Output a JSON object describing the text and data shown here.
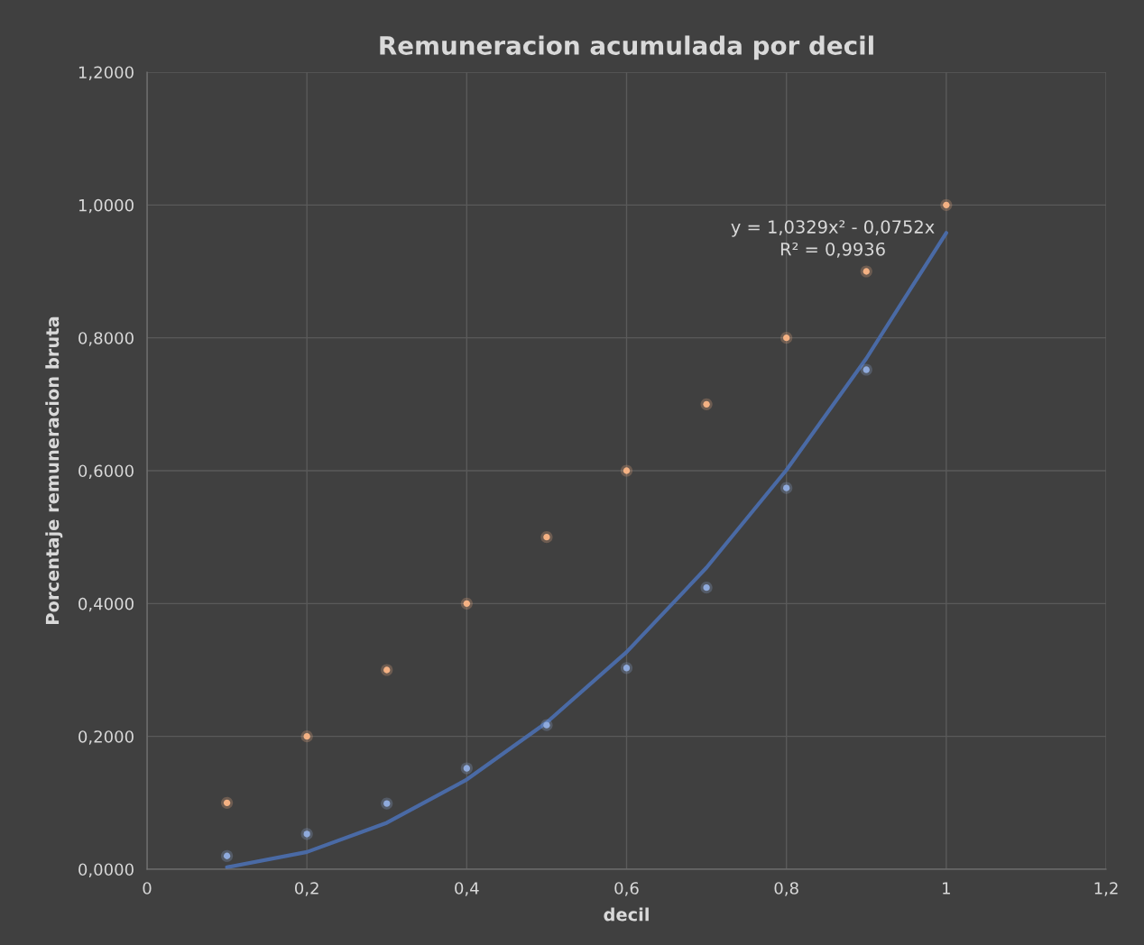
{
  "chart_data": {
    "type": "scatter",
    "title": "Remuneracion acumulada por decil",
    "xlabel": "decil",
    "ylabel": "Porcentaje remuneracion bruta",
    "x": [
      0.1,
      0.2,
      0.3,
      0.4,
      0.5,
      0.6,
      0.7,
      0.8,
      0.9,
      1.0
    ],
    "series": [
      {
        "color": "#8faadc",
        "values": [
          0.02,
          0.053,
          0.099,
          0.152,
          0.217,
          0.303,
          0.424,
          0.574,
          0.752,
          null
        ]
      },
      {
        "color": "#f4b183",
        "values": [
          0.1,
          0.2,
          0.3,
          0.4,
          0.5,
          0.6,
          0.7,
          0.8,
          0.9,
          1.0
        ]
      },
      {
        "type": "line",
        "marker": "none",
        "color": "#4a6aa5",
        "x": [
          0.1,
          0.2,
          0.3,
          0.4,
          0.5,
          0.6,
          0.7,
          0.8,
          0.9,
          1.0
        ],
        "values": [
          0.003,
          0.026,
          0.07,
          0.135,
          0.221,
          0.327,
          0.454,
          0.601,
          0.769,
          0.958
        ]
      }
    ],
    "annotations": [
      "y = 1,0329x² - 0,0752x\nR² = 0,9936"
    ],
    "xlim": [
      0,
      1.2
    ],
    "xticks": [
      0,
      {
        "value": 0.2,
        "label": "0,2"
      },
      {
        "value": 0.4,
        "label": "0,4"
      },
      {
        "value": 0.6,
        "label": "0,6"
      },
      {
        "value": 0.8,
        "label": "0,8"
      },
      1,
      {
        "value": 1.2,
        "label": "1,2"
      }
    ],
    "ylim": [
      0,
      1.2
    ],
    "yticks": [
      {
        "value": 0,
        "label": "0,0000"
      },
      {
        "value": 0.2,
        "label": "0,2000"
      },
      {
        "value": 0.4,
        "label": "0,4000"
      },
      {
        "value": 0.6,
        "label": "0,6000"
      },
      {
        "value": 0.8,
        "label": "0,8000"
      },
      {
        "value": 1.0,
        "label": "1,0000"
      },
      {
        "value": 1.2,
        "label": "1,2000"
      }
    ],
    "grid": true,
    "marker": "circle",
    "legend": false
  }
}
